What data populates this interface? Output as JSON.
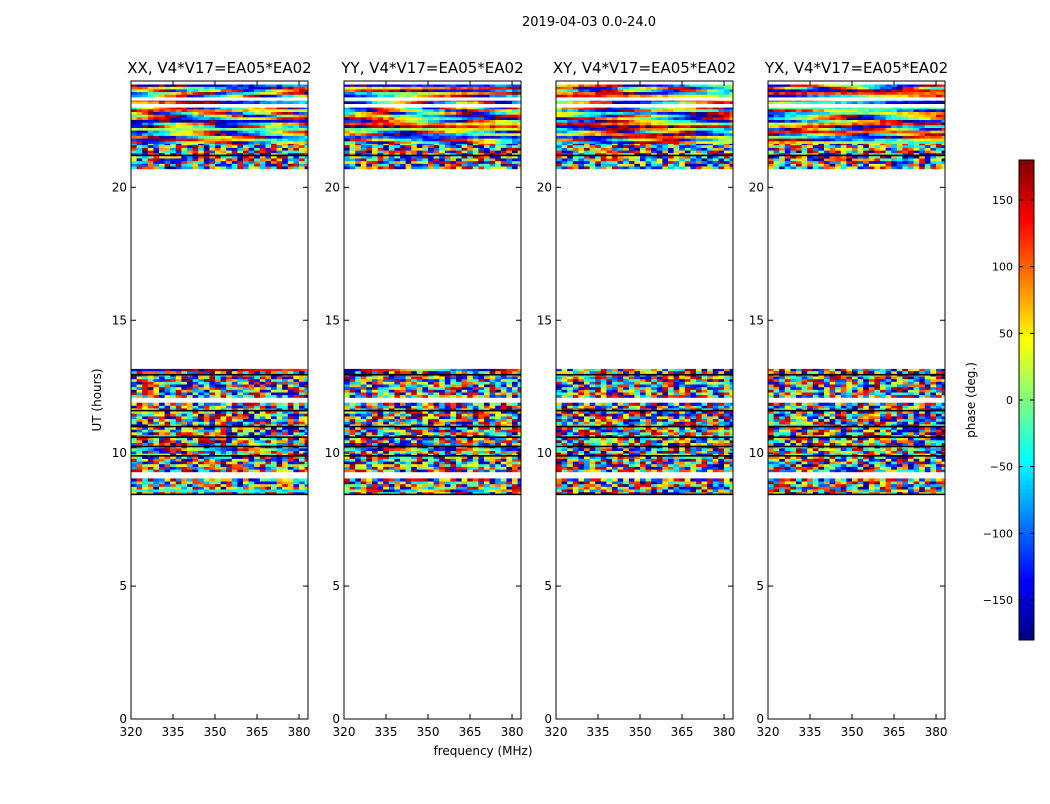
{
  "chart_data": {
    "type": "heatmap",
    "title": "2019-04-03 0.0-24.0",
    "xlabel": "frequency (MHz)",
    "ylabel": "UT (hours)",
    "xlim": [
      320,
      383.2
    ],
    "ylim": [
      0,
      24
    ],
    "xticks": [
      320,
      335,
      350,
      365,
      380
    ],
    "yticks": [
      0,
      5,
      10,
      15,
      20
    ],
    "grid": false,
    "channel_width_mhz": 2,
    "time_step_hours": 0.1,
    "panels": [
      {
        "title": "XX, V4*V17=EA05*EA02",
        "smooth_rows": true
      },
      {
        "title": "YY, V4*V17=EA05*EA02",
        "smooth_rows": true
      },
      {
        "title": "XY, V4*V17=EA05*EA02",
        "smooth_rows": false
      },
      {
        "title": "YX, V4*V17=EA05*EA02",
        "smooth_rows": false
      }
    ],
    "data_bands": [
      {
        "from": 8.45,
        "to": 9.05,
        "kind": "noise"
      },
      {
        "from": 9.3,
        "to": 11.9,
        "kind": "noise"
      },
      {
        "from": 12.1,
        "to": 13.17,
        "kind": "noise"
      },
      {
        "from": 20.7,
        "to": 21.65,
        "kind": "noise"
      },
      {
        "from": 21.65,
        "to": 23.0,
        "kind": "smooth"
      },
      {
        "from": 23.15,
        "to": 23.26,
        "kind": "smooth"
      },
      {
        "from": 23.4,
        "to": 23.87,
        "kind": "smooth"
      }
    ],
    "smooth_rows_hours": [
      8.55,
      10.1,
      13.1
    ],
    "flag_lines_hours": [
      8.45,
      9.9,
      10.25,
      10.6,
      11.0,
      11.6,
      12.95,
      21.2
    ],
    "colorbar": {
      "label": "phase (deg.)",
      "range": [
        -180,
        180
      ],
      "ticks": [
        -150,
        -100,
        -50,
        0,
        50,
        100,
        150
      ],
      "colormap": "jet"
    }
  }
}
